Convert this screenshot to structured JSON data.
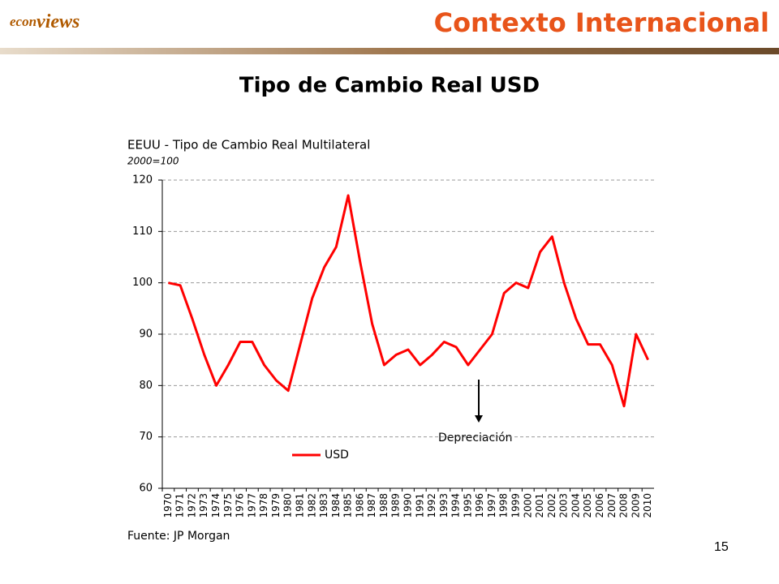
{
  "slide": {
    "logo_prefix": "econ",
    "logo_suffix": "views",
    "header": "Contexto Internacional",
    "heading": "Tipo de Cambio Real USD",
    "page_number": 15
  },
  "chart_data": {
    "type": "line",
    "title": "EEUU - Tipo de Cambio Real Multilateral",
    "subtitle": "2000=100",
    "source": "Fuente: JP Morgan",
    "annotation": "Depreciación",
    "categories": [
      "1970",
      "1971",
      "1972",
      "1973",
      "1974",
      "1975",
      "1976",
      "1977",
      "1978",
      "1979",
      "1980",
      "1981",
      "1982",
      "1983",
      "1984",
      "1985",
      "1986",
      "1987",
      "1988",
      "1989",
      "1990",
      "1991",
      "1992",
      "1993",
      "1994",
      "1995",
      "1996",
      "1997",
      "1998",
      "1999",
      "2000",
      "2001",
      "2002",
      "2003",
      "2004",
      "2005",
      "2006",
      "2007",
      "2008",
      "2009",
      "2010"
    ],
    "series": [
      {
        "name": "USD",
        "color": "#ff0000",
        "values": [
          100,
          99.5,
          93,
          86,
          80,
          84,
          88.5,
          88.5,
          84,
          81,
          79,
          88,
          97,
          103,
          107,
          117,
          104,
          92,
          84,
          86,
          87,
          84,
          86,
          88.5,
          87.5,
          84,
          87,
          90,
          98,
          100,
          99,
          106,
          109,
          100,
          93,
          88,
          88,
          84,
          76,
          90,
          85
        ]
      }
    ],
    "ylim": [
      60,
      120
    ],
    "yticks": [
      60,
      70,
      80,
      90,
      100,
      110,
      120
    ],
    "grid": true
  }
}
